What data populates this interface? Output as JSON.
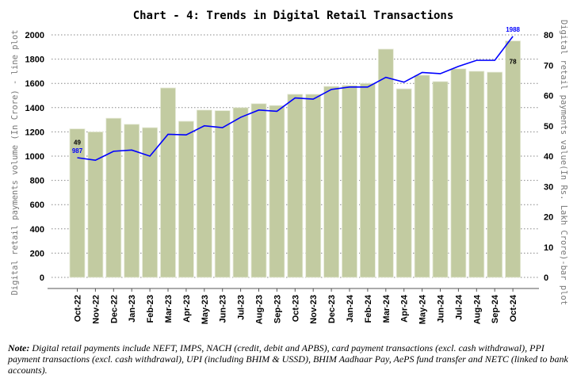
{
  "chart_data": {
    "type": "bar+line",
    "title": "Chart - 4: Trends in Digital Retail Transactions",
    "categories": [
      "Oct-22",
      "Nov-22",
      "Dec-22",
      "Jan-23",
      "Feb-23",
      "Mar-23",
      "Apr-23",
      "May-23",
      "Jun-23",
      "Jul-23",
      "Aug-23",
      "Sep-23",
      "Oct-23",
      "Nov-23",
      "Dec-23",
      "Jan-24",
      "Feb-24",
      "Mar-24",
      "Apr-24",
      "May-24",
      "Jun-24",
      "Jul-24",
      "Aug-24",
      "Sep-24",
      "Oct-24"
    ],
    "series": [
      {
        "name": "Digital retail payments value (In Rs. Lakh Crore)",
        "type": "bar",
        "axis": "right",
        "color": "#c2cba1",
        "values": [
          49,
          48,
          52.5,
          50.5,
          49.4,
          62.5,
          51.5,
          55.2,
          55,
          56,
          57.3,
          56.7,
          60.4,
          60.4,
          63,
          63.3,
          64,
          75.3,
          62.2,
          66.7,
          64.6,
          68.8,
          68,
          67.7,
          78
        ]
      },
      {
        "name": "Digital retail payments volume (In Crore)",
        "type": "line",
        "axis": "left",
        "color": "#0000ff",
        "values": [
          987,
          966,
          1040,
          1050,
          1000,
          1180,
          1175,
          1250,
          1235,
          1320,
          1380,
          1370,
          1480,
          1470,
          1550,
          1570,
          1570,
          1650,
          1610,
          1690,
          1680,
          1740,
          1790,
          1790,
          1988
        ]
      }
    ],
    "data_labels": {
      "bar_first": "49",
      "bar_last": "78",
      "line_first": "987",
      "line_last": "1988"
    },
    "ylabel_left": "Digital retail payments volume (In Crore) - line plot",
    "ylabel_right": "Digital retail payments value(In Rs. Lakh Crore)-bar plot",
    "ylim_left": [
      0,
      2000
    ],
    "ylim_right": [
      0,
      80
    ],
    "yticks_left": [
      "0",
      "200",
      "400",
      "600",
      "800",
      "1000",
      "1200",
      "1400",
      "1600",
      "1800",
      "2000"
    ],
    "yticks_right": [
      "0",
      "10",
      "20",
      "30",
      "40",
      "50",
      "60",
      "70",
      "80"
    ],
    "grid": true
  },
  "note": {
    "label": "Note:",
    "text": " Digital retail payments include NEFT, IMPS, NACH (credit, debit and APBS), card payment transactions (excl. cash withdrawal), PPI payment transactions (excl. cash withdrawal), UPI (including BHIM & USSD), BHIM Aadhaar Pay, AePS fund transfer and NETC (linked to bank accounts)."
  }
}
